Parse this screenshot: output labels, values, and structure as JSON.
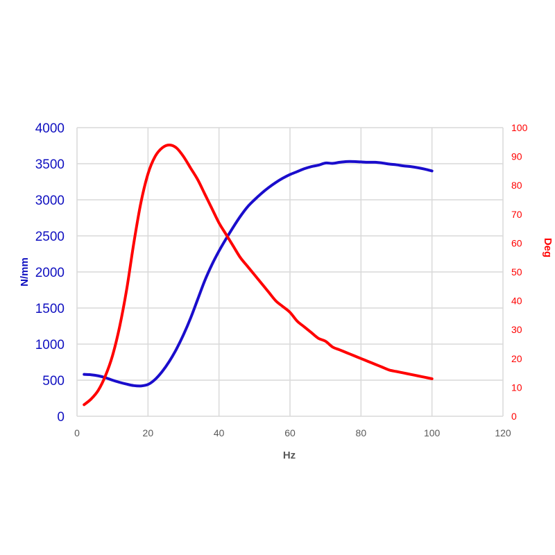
{
  "chart_data": {
    "type": "line",
    "xlabel": "Hz",
    "ylabel_left": "N/mm",
    "ylabel_right": "Deg",
    "xlim": [
      0,
      120
    ],
    "xticks": [
      0,
      20,
      40,
      60,
      80,
      100,
      120
    ],
    "ylim_left": [
      0,
      4000
    ],
    "yticks_left": [
      0,
      500,
      1000,
      1500,
      2000,
      2500,
      3000,
      3500,
      4000
    ],
    "ylim_right": [
      0,
      100
    ],
    "yticks_right": [
      0,
      10,
      20,
      30,
      40,
      50,
      60,
      70,
      80,
      90,
      100
    ],
    "grid": true,
    "colors": {
      "left_axis": "#1010c0",
      "right_axis": "#ff0000",
      "grid": "#d9d9d9"
    },
    "series": [
      {
        "axis": "left",
        "color": "#1a0dcc",
        "points": [
          [
            2,
            580
          ],
          [
            4,
            575
          ],
          [
            6,
            560
          ],
          [
            8,
            535
          ],
          [
            10,
            500
          ],
          [
            12,
            470
          ],
          [
            14,
            445
          ],
          [
            16,
            425
          ],
          [
            18,
            420
          ],
          [
            20,
            440
          ],
          [
            22,
            510
          ],
          [
            24,
            620
          ],
          [
            26,
            760
          ],
          [
            28,
            930
          ],
          [
            30,
            1130
          ],
          [
            32,
            1360
          ],
          [
            34,
            1620
          ],
          [
            36,
            1880
          ],
          [
            38,
            2100
          ],
          [
            40,
            2290
          ],
          [
            42,
            2460
          ],
          [
            44,
            2620
          ],
          [
            46,
            2770
          ],
          [
            48,
            2900
          ],
          [
            50,
            3000
          ],
          [
            52,
            3090
          ],
          [
            54,
            3170
          ],
          [
            56,
            3240
          ],
          [
            58,
            3300
          ],
          [
            60,
            3350
          ],
          [
            62,
            3390
          ],
          [
            64,
            3430
          ],
          [
            66,
            3460
          ],
          [
            68,
            3480
          ],
          [
            70,
            3510
          ],
          [
            72,
            3505
          ],
          [
            74,
            3520
          ],
          [
            76,
            3530
          ],
          [
            78,
            3530
          ],
          [
            80,
            3525
          ],
          [
            82,
            3520
          ],
          [
            84,
            3520
          ],
          [
            86,
            3510
          ],
          [
            88,
            3495
          ],
          [
            90,
            3485
          ],
          [
            92,
            3470
          ],
          [
            94,
            3460
          ],
          [
            96,
            3445
          ],
          [
            98,
            3425
          ],
          [
            100,
            3400
          ]
        ]
      },
      {
        "axis": "right",
        "color": "#ff0000",
        "points": [
          [
            2,
            4
          ],
          [
            4,
            6
          ],
          [
            6,
            9
          ],
          [
            8,
            14
          ],
          [
            10,
            21
          ],
          [
            12,
            31
          ],
          [
            14,
            44
          ],
          [
            16,
            60
          ],
          [
            18,
            74
          ],
          [
            20,
            84
          ],
          [
            22,
            90
          ],
          [
            24,
            93
          ],
          [
            26,
            94
          ],
          [
            28,
            93
          ],
          [
            30,
            90
          ],
          [
            32,
            86
          ],
          [
            34,
            82
          ],
          [
            36,
            77
          ],
          [
            38,
            72
          ],
          [
            40,
            67
          ],
          [
            42,
            63
          ],
          [
            44,
            59
          ],
          [
            46,
            55
          ],
          [
            48,
            52
          ],
          [
            50,
            49
          ],
          [
            52,
            46
          ],
          [
            54,
            43
          ],
          [
            56,
            40
          ],
          [
            58,
            38
          ],
          [
            60,
            36
          ],
          [
            62,
            33
          ],
          [
            64,
            31
          ],
          [
            66,
            29
          ],
          [
            68,
            27
          ],
          [
            70,
            26
          ],
          [
            72,
            24
          ],
          [
            74,
            23
          ],
          [
            76,
            22
          ],
          [
            78,
            21
          ],
          [
            80,
            20
          ],
          [
            82,
            19
          ],
          [
            84,
            18
          ],
          [
            86,
            17
          ],
          [
            88,
            16
          ],
          [
            90,
            15.5
          ],
          [
            92,
            15
          ],
          [
            94,
            14.5
          ],
          [
            96,
            14
          ],
          [
            98,
            13.5
          ],
          [
            100,
            13
          ]
        ]
      }
    ]
  }
}
